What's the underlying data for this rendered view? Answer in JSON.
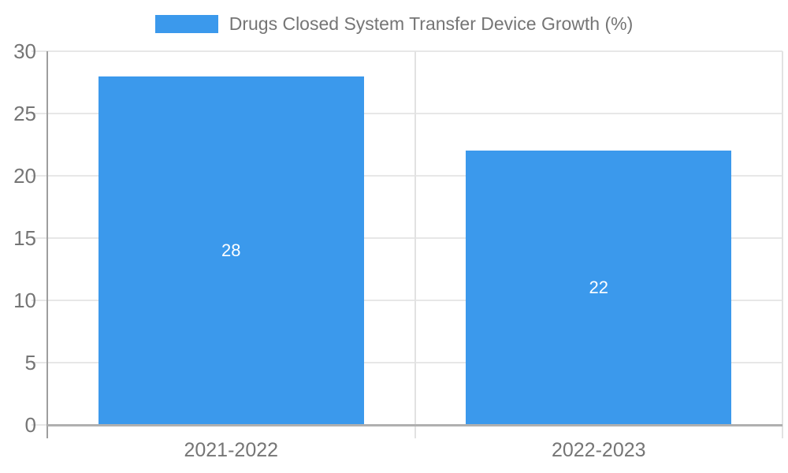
{
  "legend": {
    "label": "Drugs Closed System Transfer Device Growth (%)"
  },
  "colors": {
    "bar": "#3B99EC",
    "grid": "#e7e7e7",
    "boundary": "#e2e2e2",
    "y_axis": "#9e9e9e",
    "x_axis": "#b0b0b0",
    "text": "#757575",
    "bar_label": "#ffffff"
  },
  "chart_data": {
    "type": "bar",
    "title": "Drugs Closed System Transfer Device Growth (%)",
    "series": [
      {
        "name": "Drugs Closed System Transfer Device Growth (%)",
        "values": [
          28,
          22
        ]
      }
    ],
    "categories": [
      "2021-2022",
      "2022-2023"
    ],
    "values": [
      28,
      22
    ],
    "data_labels": [
      "28",
      "22"
    ],
    "xlabel": "",
    "ylabel": "",
    "ylim": [
      0,
      30
    ],
    "yticks": [
      0,
      5,
      10,
      15,
      20,
      25,
      30
    ],
    "grid": "horizontal",
    "legend_position": "top-center",
    "data_label_position": "center-inside"
  }
}
